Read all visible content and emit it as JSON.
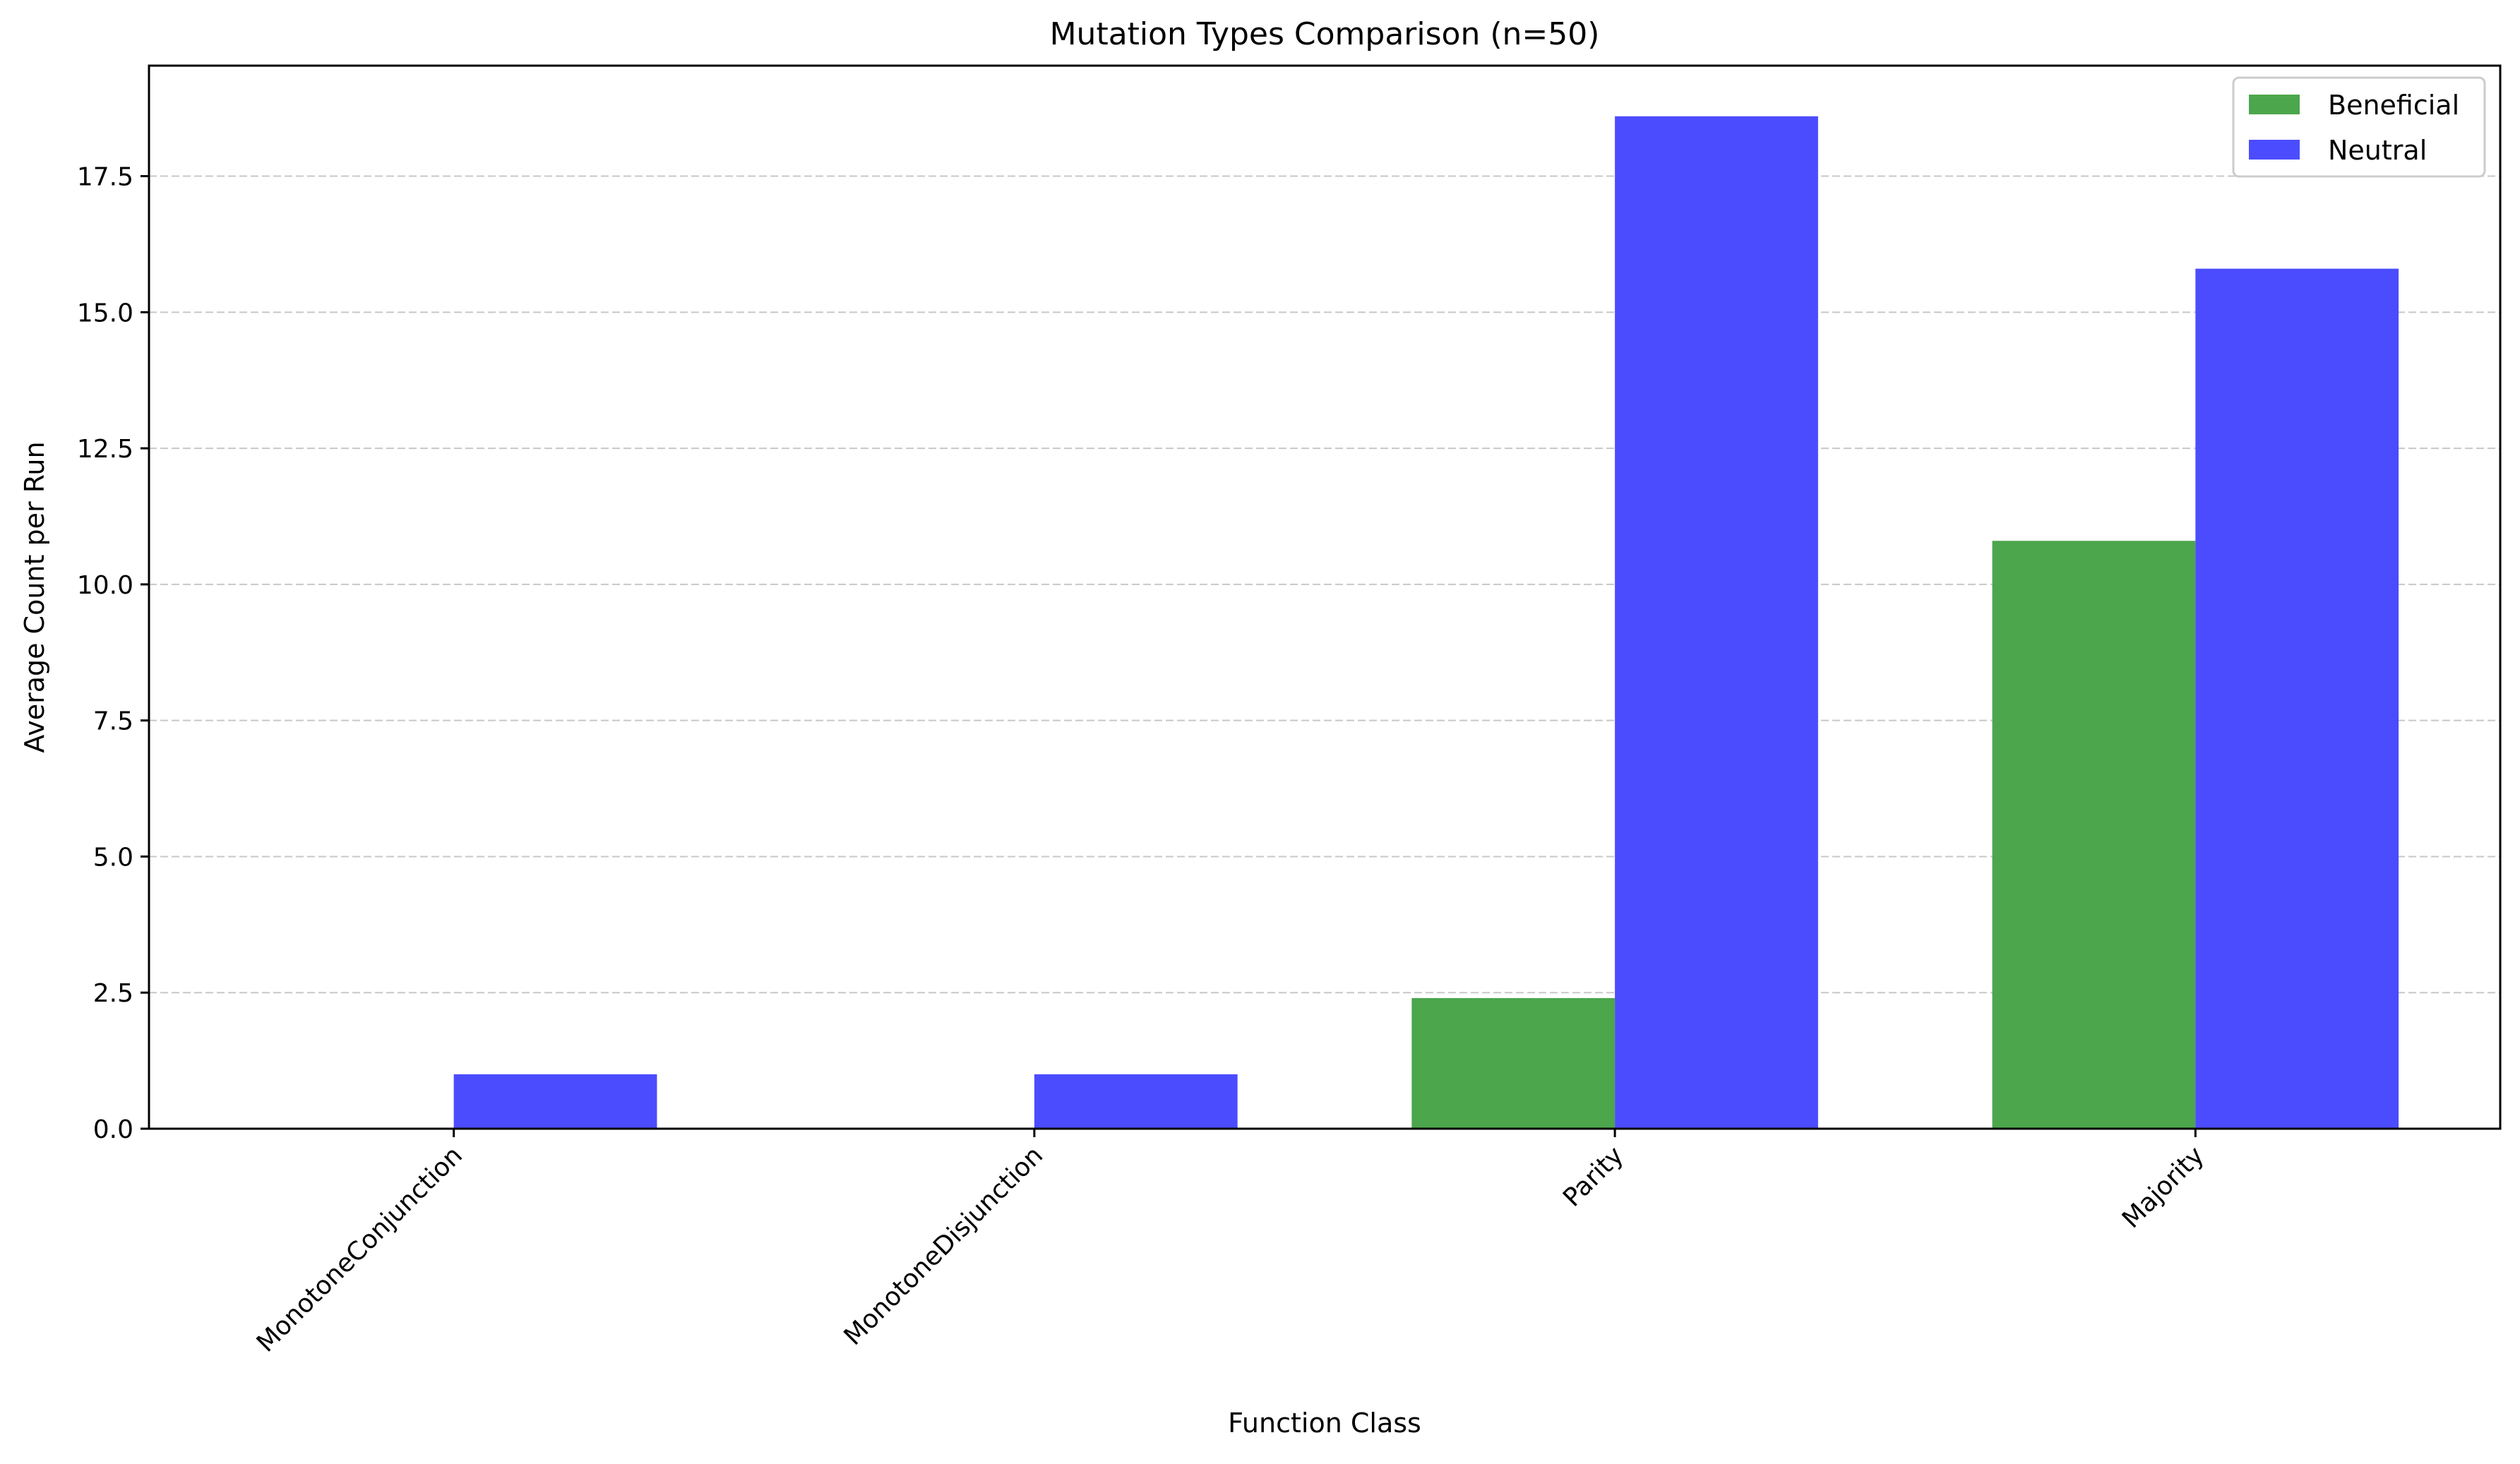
{
  "chart_data": {
    "type": "bar",
    "title": "Mutation Types Comparison (n=50)",
    "xlabel": "Function Class",
    "ylabel": "Average Count per Run",
    "categories": [
      "MonotoneConjunction",
      "MonotoneDisjunction",
      "Parity",
      "Majority"
    ],
    "series": [
      {
        "name": "Beneficial",
        "color": "#4ca64c",
        "values": [
          0.0,
          0.0,
          2.4,
          10.8
        ]
      },
      {
        "name": "Neutral",
        "color": "#4c4cff",
        "values": [
          1.0,
          1.0,
          18.6,
          15.8
        ]
      }
    ],
    "ylim": [
      0,
      19.53
    ],
    "yticks": [
      0.0,
      2.5,
      5.0,
      7.5,
      10.0,
      12.5,
      15.0,
      17.5
    ],
    "ytick_labels": [
      "0.0",
      "2.5",
      "5.0",
      "7.5",
      "10.0",
      "12.5",
      "15.0",
      "17.5"
    ],
    "grid": "y-dashed",
    "legend_position": "top-right"
  }
}
